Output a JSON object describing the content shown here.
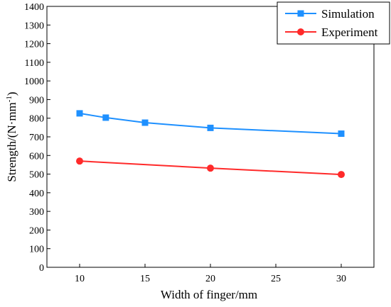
{
  "chart_data": {
    "type": "line",
    "title": "",
    "xlabel": "Width of finger/mm",
    "ylabel_main": "Strength/(N·mm",
    "ylabel_sup": "-1",
    "ylabel_close": ")",
    "xlim": [
      7.5,
      32.5
    ],
    "ylim": [
      0,
      1400
    ],
    "xticks": [
      10,
      15,
      20,
      25,
      30
    ],
    "yticks": [
      0,
      100,
      200,
      300,
      400,
      500,
      600,
      700,
      800,
      900,
      1000,
      1100,
      1200,
      1300,
      1400
    ],
    "grid": false,
    "legend_position": "top-right",
    "series": [
      {
        "name": "Simulation",
        "color": "#1e90ff",
        "marker": "square",
        "x": [
          10,
          12,
          15,
          20,
          30
        ],
        "y": [
          826,
          803,
          776,
          748,
          717
        ]
      },
      {
        "name": "Experiment",
        "color": "#ff2a2a",
        "marker": "circle",
        "x": [
          10,
          20,
          30
        ],
        "y": [
          570,
          532,
          498
        ]
      }
    ]
  }
}
